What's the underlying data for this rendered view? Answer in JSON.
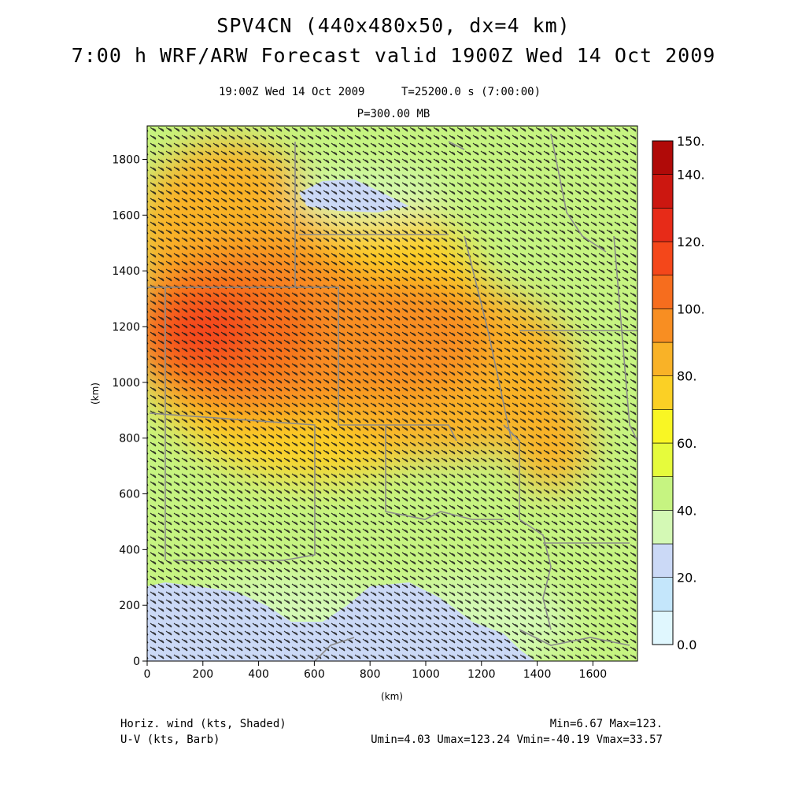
{
  "header": {
    "title_line1": "SPV4CN (440x480x50, dx=4 km)",
    "title_line2": "7:00 h WRF/ARW Forecast valid 1900Z Wed 14 Oct 2009",
    "valid_time": "19:00Z Wed 14 Oct 2009",
    "time_seconds": "T=25200.0 s (7:00:00)",
    "pressure_level": "P=300.00 MB"
  },
  "footer": {
    "left_line1": "Horiz. wind (kts, Shaded)",
    "left_line2": "U-V (kts, Barb)",
    "right_line1": "Min=6.67 Max=123.",
    "right_line2": "Umin=4.03 Umax=123.24 Vmin=-40.19 Vmax=33.57"
  },
  "map": {
    "x_axis_label": "(km)",
    "y_axis_label": "(km)",
    "x_range": [
      0,
      1760
    ],
    "y_range": [
      0,
      1920
    ],
    "x_ticks": [
      0,
      200,
      400,
      600,
      800,
      1000,
      1200,
      1400,
      1600
    ],
    "y_ticks": [
      0,
      200,
      400,
      600,
      800,
      1000,
      1200,
      1400,
      1600,
      1800
    ],
    "field": "horizontal wind speed (kts)",
    "wind_maximum_center_km": [
      300,
      1180
    ],
    "low_wind_areas": [
      "south-west corner",
      "south-central",
      "north-central near y=1650"
    ]
  },
  "colorbar": {
    "labels": [
      "150.",
      "140.",
      "120.",
      "100.",
      "80.",
      "60.",
      "40.",
      "20.",
      "0.0"
    ],
    "levels": [
      0,
      10,
      20,
      30,
      40,
      50,
      60,
      70,
      80,
      90,
      100,
      110,
      120,
      130,
      140,
      150
    ],
    "colors": [
      "#e0f7fe",
      "#c4e6fb",
      "#cbd9f6",
      "#d4f9b5",
      "#c6f481",
      "#e6fb3c",
      "#f9f624",
      "#fbd025",
      "#f9b227",
      "#f88e22",
      "#f66d1e",
      "#f4471a",
      "#e72b18",
      "#cc1710",
      "#b00a08"
    ]
  }
}
